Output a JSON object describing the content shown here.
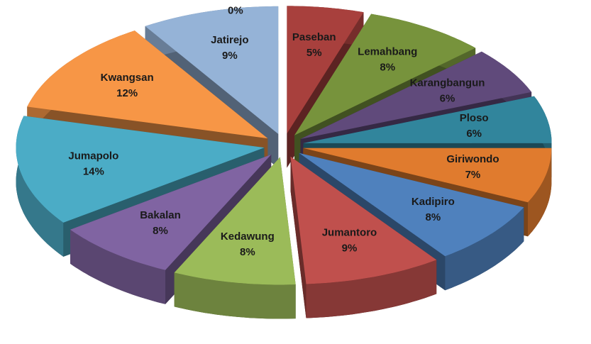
{
  "chart_data": {
    "type": "pie3d",
    "categories": [
      "Paseban",
      "Lemahbang",
      "Karangbangun",
      "Ploso",
      "Giriwondo",
      "Kadipiro",
      "Jumantoro",
      "Kedawung",
      "Bakalan",
      "Jumapolo",
      "Kwangsan",
      "Jatirejo",
      null
    ],
    "values": [
      5,
      8,
      6,
      6,
      7,
      8,
      9,
      8,
      8,
      14,
      12,
      9,
      0
    ],
    "value_labels": [
      "5%",
      "8%",
      "6%",
      "6%",
      "7%",
      "8%",
      "9%",
      "8%",
      "8%",
      "14%",
      "12%",
      "9%",
      "0%"
    ],
    "colors": [
      "#a8403d",
      "#77933c",
      "#604a7b",
      "#31859c",
      "#e07b2e",
      "#4f81bd",
      "#c0504d",
      "#9bbb59",
      "#8064a2",
      "#4bacc6",
      "#f79646",
      "#95b3d7",
      "#4f6228"
    ]
  }
}
